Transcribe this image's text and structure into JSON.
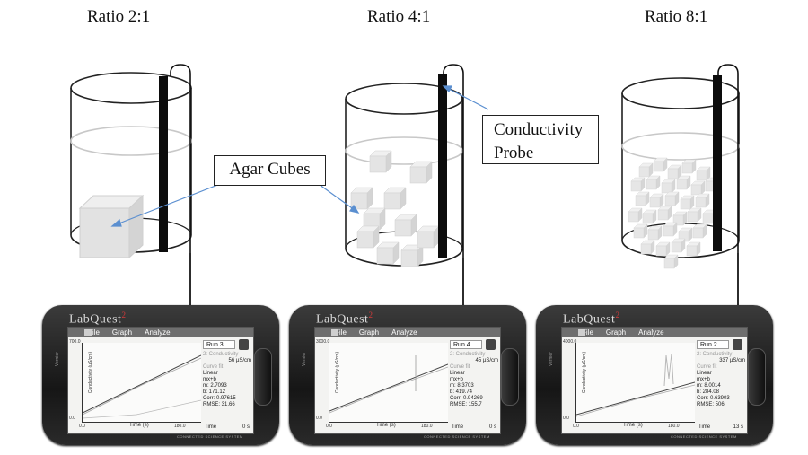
{
  "ratios": [
    "Ratio 2:1",
    "Ratio 4:1",
    "Ratio 8:1"
  ],
  "callouts": {
    "agar": "Agar Cubes",
    "probe_line1": "Conductivity",
    "probe_line2": "Probe"
  },
  "device": {
    "logo": "LabQuest",
    "logo_sup": "2",
    "menu": [
      "File",
      "Graph",
      "Analyze"
    ],
    "ylabel": "Conductivity (µS/cm)",
    "xlabel": "Time (s)",
    "x_min": "0.0",
    "x_max": "180.0",
    "footer": "CONNECTED SCIENCE SYSTEM",
    "brand": "Vernier",
    "time_label": "Time",
    "fit_type": "Linear",
    "fit_eq": "mx+b"
  },
  "units": [
    {
      "run": "Run 3",
      "y_max": "700.0",
      "y_min": "0.0",
      "reading": "56 µS/cm",
      "m": "m: 2.7093",
      "b": "b: 171.12",
      "corr": "Corr: 0.97615",
      "rmse": "RMSE: 31.66",
      "time": "0 s",
      "probe_label": "2: Conductivity",
      "curve": "Curve fit"
    },
    {
      "run": "Run 4",
      "y_max": "3000.0",
      "y_min": "0.0",
      "reading": "45 µS/cm",
      "m": "m: 8.3703",
      "b": "b: 419.74",
      "corr": "Corr: 0.94269",
      "rmse": "RMSE: 155.7",
      "time": "0 s",
      "probe_label": "2: Conductivity",
      "curve": "Curve fit"
    },
    {
      "run": "Run 2",
      "y_max": "4000.0",
      "y_min": "0.0",
      "reading": "337 µS/cm",
      "m": "m: 8.0014",
      "b": "b: 284.08",
      "corr": "Corr: 0.63903",
      "rmse": "RMSE: 506",
      "time": "13 s",
      "probe_label": "2: Conductivity",
      "curve": "Curve fit"
    }
  ]
}
